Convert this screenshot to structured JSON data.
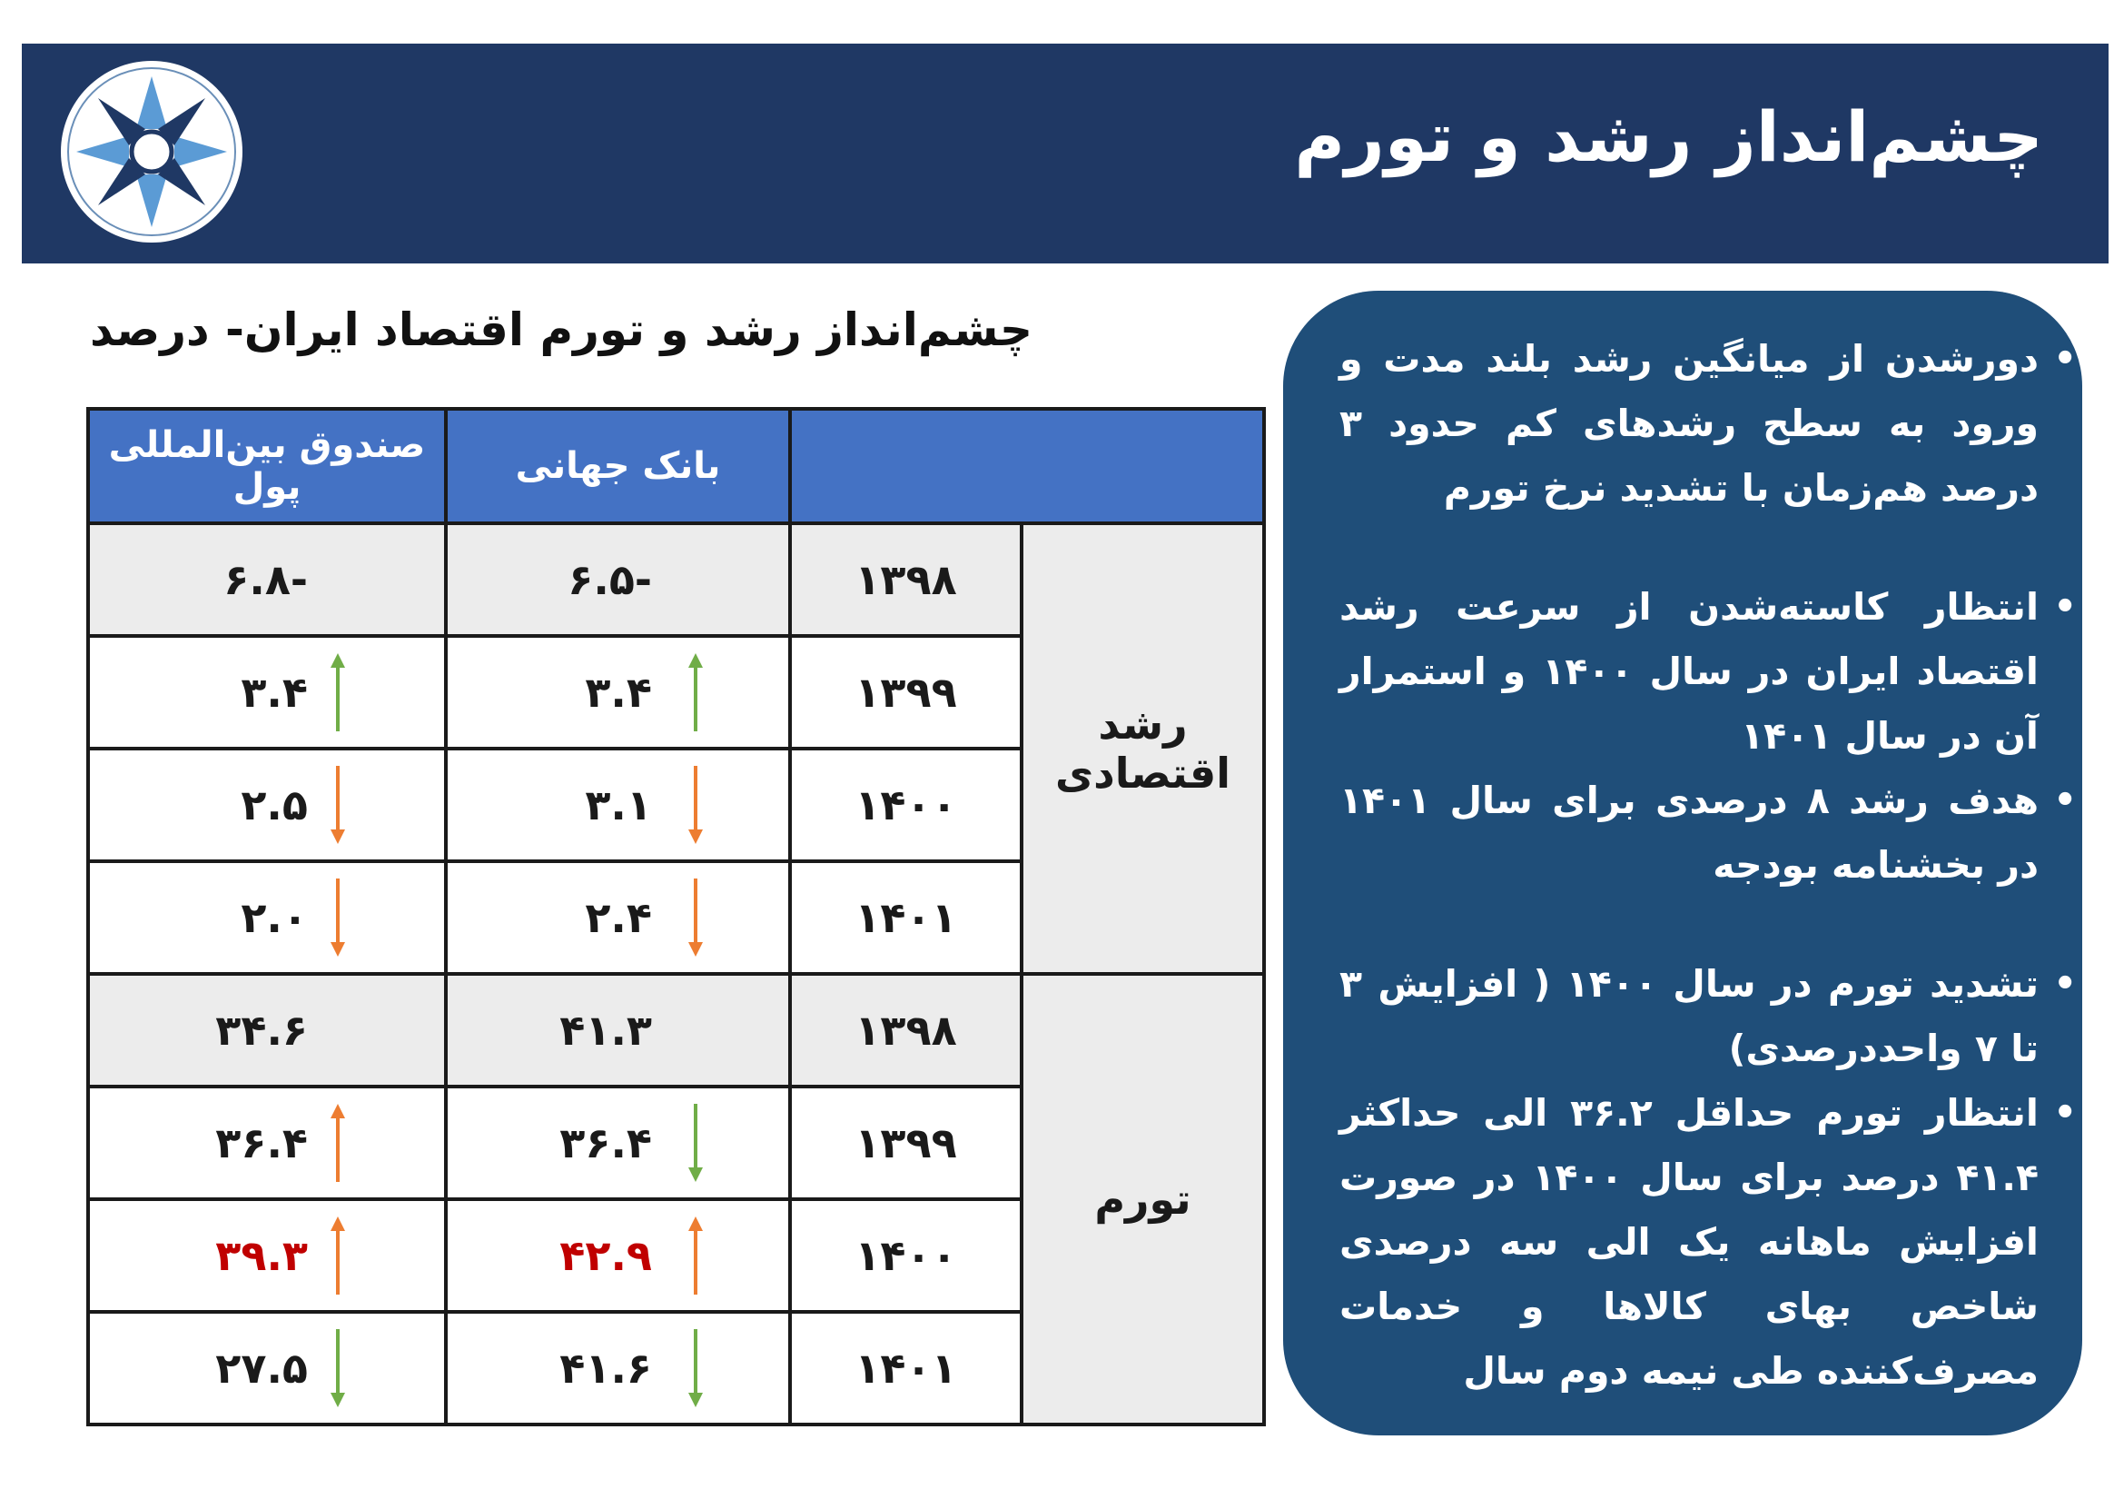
{
  "header": {
    "title": "چشم‌انداز رشد و تورم"
  },
  "table": {
    "title": "چشم‌انداز رشد و تورم اقتصاد ایران- درصد",
    "columns": [
      "صندوق بین‌المللی پول",
      "بانک جهانی",
      ""
    ],
    "groups": [
      {
        "label": "رشد اقتصادی",
        "rows": [
          {
            "year": "۱۳۹۸",
            "wb": "-۶.۵",
            "imf": "-۶.۸",
            "wb_arrow": "",
            "imf_arrow": ""
          },
          {
            "year": "۱۳۹۹",
            "wb": "۳.۴",
            "imf": "۳.۴",
            "wb_arrow": "up-green",
            "imf_arrow": "up-green"
          },
          {
            "year": "۱۴۰۰",
            "wb": "۳.۱",
            "imf": "۲.۵",
            "wb_arrow": "down-orange",
            "imf_arrow": "down-orange"
          },
          {
            "year": "۱۴۰۱",
            "wb": "۲.۴",
            "imf": "۲.۰",
            "wb_arrow": "down-orange",
            "imf_arrow": "down-orange"
          }
        ]
      },
      {
        "label": "تورم",
        "rows": [
          {
            "year": "۱۳۹۸",
            "wb": "۴۱.۳",
            "imf": "۳۴.۶",
            "wb_arrow": "",
            "imf_arrow": ""
          },
          {
            "year": "۱۳۹۹",
            "wb": "۳۶.۴",
            "imf": "۳۶.۴",
            "wb_arrow": "down-green",
            "imf_arrow": "up-orange"
          },
          {
            "year": "۱۴۰۰",
            "wb": "۴۲.۹",
            "imf": "۳۹.۳",
            "wb_arrow": "up-orange",
            "imf_arrow": "up-orange",
            "highlight": true
          },
          {
            "year": "۱۴۰۱",
            "wb": "۴۱.۶",
            "imf": "۲۷.۵",
            "wb_arrow": "down-green",
            "imf_arrow": "down-green"
          }
        ]
      }
    ]
  },
  "bullets": [
    "دورشدن از میانگین رشد بلند مدت و ورود به سطح رشدهای کم حدود ۳ درصد هم‌زمان با تشدید نرخ تورم",
    "انتظار کاسته‌شدن از سرعت رشد اقتصاد ایران در سال ۱۴۰۰ و استمرار آن در سال ۱۴۰۱",
    "هدف رشد ۸ درصدی برای سال ۱۴۰۱ در بخشنامه بودجه",
    "تشدید تورم در سال ۱۴۰۰ ( افزایش ۳ تا ۷ واحددرصدی)",
    "انتظار تورم حداقل ۳۶.۲ الی حداکثر ۴۱.۴ درصد برای سال ۱۴۰۰ در صورت افزایش ماهانه یک الی سه درصدی شاخص بهای کالاها و خدمات مصرف‌کننده طی نیمه دوم سال"
  ],
  "colors": {
    "banner": "#1f3864",
    "panel": "#1f4e79",
    "header_cell": "#4472c4",
    "up_orange": "#ed7d31",
    "down_green": "#70ad47",
    "highlight": "#c00000"
  }
}
